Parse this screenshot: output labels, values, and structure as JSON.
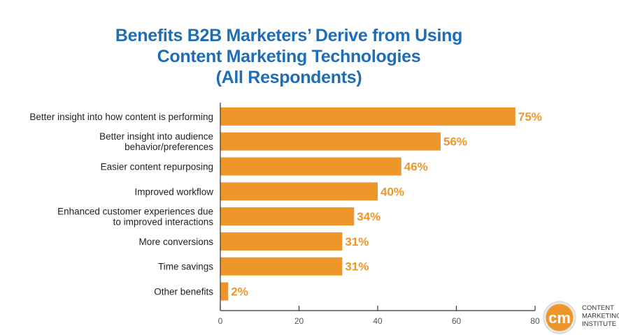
{
  "chart_data": {
    "type": "bar",
    "orientation": "horizontal",
    "title": [
      "Benefits B2B Marketers’ Derive from Using",
      "Content Marketing Technologies",
      "(All Respondents)"
    ],
    "categories": [
      [
        "Better insight into how content is performing"
      ],
      [
        "Better insight into audience",
        "behavior/preferences"
      ],
      [
        "Easier content repurposing"
      ],
      [
        "Improved workflow"
      ],
      [
        "Enhanced customer experiences due",
        "to improved interactions"
      ],
      [
        "More conversions"
      ],
      [
        "Time savings"
      ],
      [
        "Other benefits"
      ]
    ],
    "values": [
      75,
      56,
      46,
      40,
      34,
      31,
      31,
      2
    ],
    "data_labels": [
      "75%",
      "56%",
      "46%",
      "40%",
      "34%",
      "31%",
      "31%",
      "2%"
    ],
    "xlim": [
      0,
      80
    ],
    "xticks": [
      "0",
      "20",
      "40",
      "60",
      "80"
    ],
    "xlabel": "",
    "ylabel": "",
    "grid": false,
    "colors": {
      "bar": "#ee962a",
      "title": "#1f6db4",
      "label": "#ee962a"
    }
  },
  "logo": {
    "text": [
      "CONTENT",
      "MARKETING",
      "INSTITUTE"
    ],
    "mark": "cm",
    "color": "#ee962a"
  }
}
